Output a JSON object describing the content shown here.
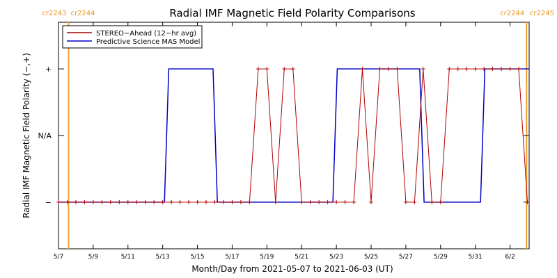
{
  "chart_data": {
    "type": "line",
    "title": "Radial IMF Magnetic Field Polarity Comparisons",
    "xlabel": "Month/Day from 2021-05-07 to 2021-06-03 (UT)",
    "ylabel": "Radial IMF Magnetic Field Polarity (−,+)",
    "x_range_days": [
      0,
      27.1
    ],
    "x_ticks": [
      {
        "day": 0,
        "label": "5/7"
      },
      {
        "day": 2,
        "label": "5/9"
      },
      {
        "day": 4,
        "label": "5/11"
      },
      {
        "day": 6,
        "label": "5/13"
      },
      {
        "day": 8,
        "label": "5/15"
      },
      {
        "day": 10,
        "label": "5/17"
      },
      {
        "day": 12,
        "label": "5/19"
      },
      {
        "day": 14,
        "label": "5/21"
      },
      {
        "day": 16,
        "label": "5/23"
      },
      {
        "day": 18,
        "label": "5/25"
      },
      {
        "day": 20,
        "label": "5/27"
      },
      {
        "day": 22,
        "label": "5/29"
      },
      {
        "day": 24,
        "label": "5/31"
      },
      {
        "day": 26,
        "label": "6/2"
      }
    ],
    "y_range": [
      -1.7,
      1.7
    ],
    "y_ticks": [
      {
        "value": 1,
        "label": "+"
      },
      {
        "value": 0,
        "label": "N/A"
      },
      {
        "value": -1,
        "label": "−"
      }
    ],
    "carrington_markers": [
      {
        "day": 0.58,
        "left_label": "cr2243",
        "right_label": "cr2244"
      },
      {
        "day": 26.95,
        "left_label": "cr2244",
        "right_label": "cr2245"
      }
    ],
    "colors": {
      "stereo": "#b00000",
      "model": "#0000c8",
      "carrington": "#f0a030"
    },
    "legend_position": "top-left",
    "series": [
      {
        "name": "STEREO−Ahead (12−hr avg)",
        "points": [
          [
            0.0,
            -1
          ],
          [
            0.5,
            -1
          ],
          [
            1.0,
            -1
          ],
          [
            1.5,
            -1
          ],
          [
            2.0,
            -1
          ],
          [
            2.5,
            -1
          ],
          [
            3.0,
            -1
          ],
          [
            3.5,
            -1
          ],
          [
            4.0,
            -1
          ],
          [
            4.5,
            -1
          ],
          [
            5.0,
            -1
          ],
          [
            5.5,
            -1
          ],
          [
            6.0,
            -1
          ],
          [
            6.5,
            -1
          ],
          [
            7.0,
            -1
          ],
          [
            7.5,
            -1
          ],
          [
            8.0,
            -1
          ],
          [
            8.5,
            -1
          ],
          [
            9.0,
            -1
          ],
          [
            9.5,
            -1
          ],
          [
            10.0,
            -1
          ],
          [
            10.5,
            -1
          ],
          [
            11.0,
            -1
          ],
          [
            11.5,
            1
          ],
          [
            12.0,
            1
          ],
          [
            12.5,
            -1
          ],
          [
            13.0,
            1
          ],
          [
            13.5,
            1
          ],
          [
            14.0,
            -1
          ],
          [
            14.5,
            -1
          ],
          [
            15.0,
            -1
          ],
          [
            15.5,
            -1
          ],
          [
            16.0,
            -1
          ],
          [
            16.5,
            -1
          ],
          [
            17.0,
            -1
          ],
          [
            17.5,
            1
          ],
          [
            18.0,
            -1
          ],
          [
            18.5,
            1
          ],
          [
            19.0,
            1
          ],
          [
            19.5,
            1
          ],
          [
            20.0,
            -1
          ],
          [
            20.5,
            -1
          ],
          [
            21.0,
            1
          ],
          [
            21.5,
            -1
          ],
          [
            22.0,
            -1
          ],
          [
            22.5,
            1
          ],
          [
            23.0,
            1
          ],
          [
            23.5,
            1
          ],
          [
            24.0,
            1
          ],
          [
            24.5,
            1
          ],
          [
            25.0,
            1
          ],
          [
            25.5,
            1
          ],
          [
            26.0,
            1
          ],
          [
            26.5,
            1
          ],
          [
            27.0,
            -1
          ]
        ]
      },
      {
        "name": "Predictive Science MAS Model",
        "points": [
          [
            0.0,
            -1
          ],
          [
            6.1,
            -1
          ],
          [
            6.35,
            1
          ],
          [
            8.9,
            1
          ],
          [
            9.15,
            -1
          ],
          [
            15.8,
            -1
          ],
          [
            16.05,
            1
          ],
          [
            20.8,
            1
          ],
          [
            21.05,
            -1
          ],
          [
            24.3,
            -1
          ],
          [
            24.55,
            1
          ],
          [
            27.1,
            1
          ]
        ]
      }
    ]
  }
}
